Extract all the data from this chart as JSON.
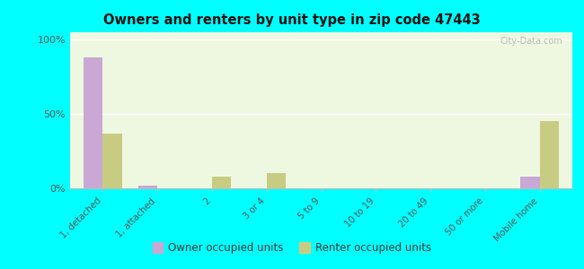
{
  "title": "Owners and renters by unit type in zip code 47443",
  "categories": [
    "1, detached",
    "1, attached",
    "2",
    "3 or 4",
    "5 to 9",
    "10 to 19",
    "20 to 49",
    "50 or more",
    "Mobile home"
  ],
  "owner_values": [
    88,
    2,
    0,
    0,
    0,
    0,
    0,
    0,
    8
  ],
  "renter_values": [
    37,
    0,
    8,
    10,
    0,
    0,
    0,
    0,
    45
  ],
  "owner_color": "#c9a8d4",
  "renter_color": "#c8cc82",
  "background_color": "#00ffff",
  "plot_bg_color": "#eef8e0",
  "ylabel_ticks": [
    "0%",
    "50%",
    "100%"
  ],
  "ytick_vals": [
    0,
    50,
    100
  ],
  "ylim": [
    0,
    105
  ],
  "legend_owner": "Owner occupied units",
  "legend_renter": "Renter occupied units",
  "watermark": "City-Data.com",
  "bar_width": 0.35
}
